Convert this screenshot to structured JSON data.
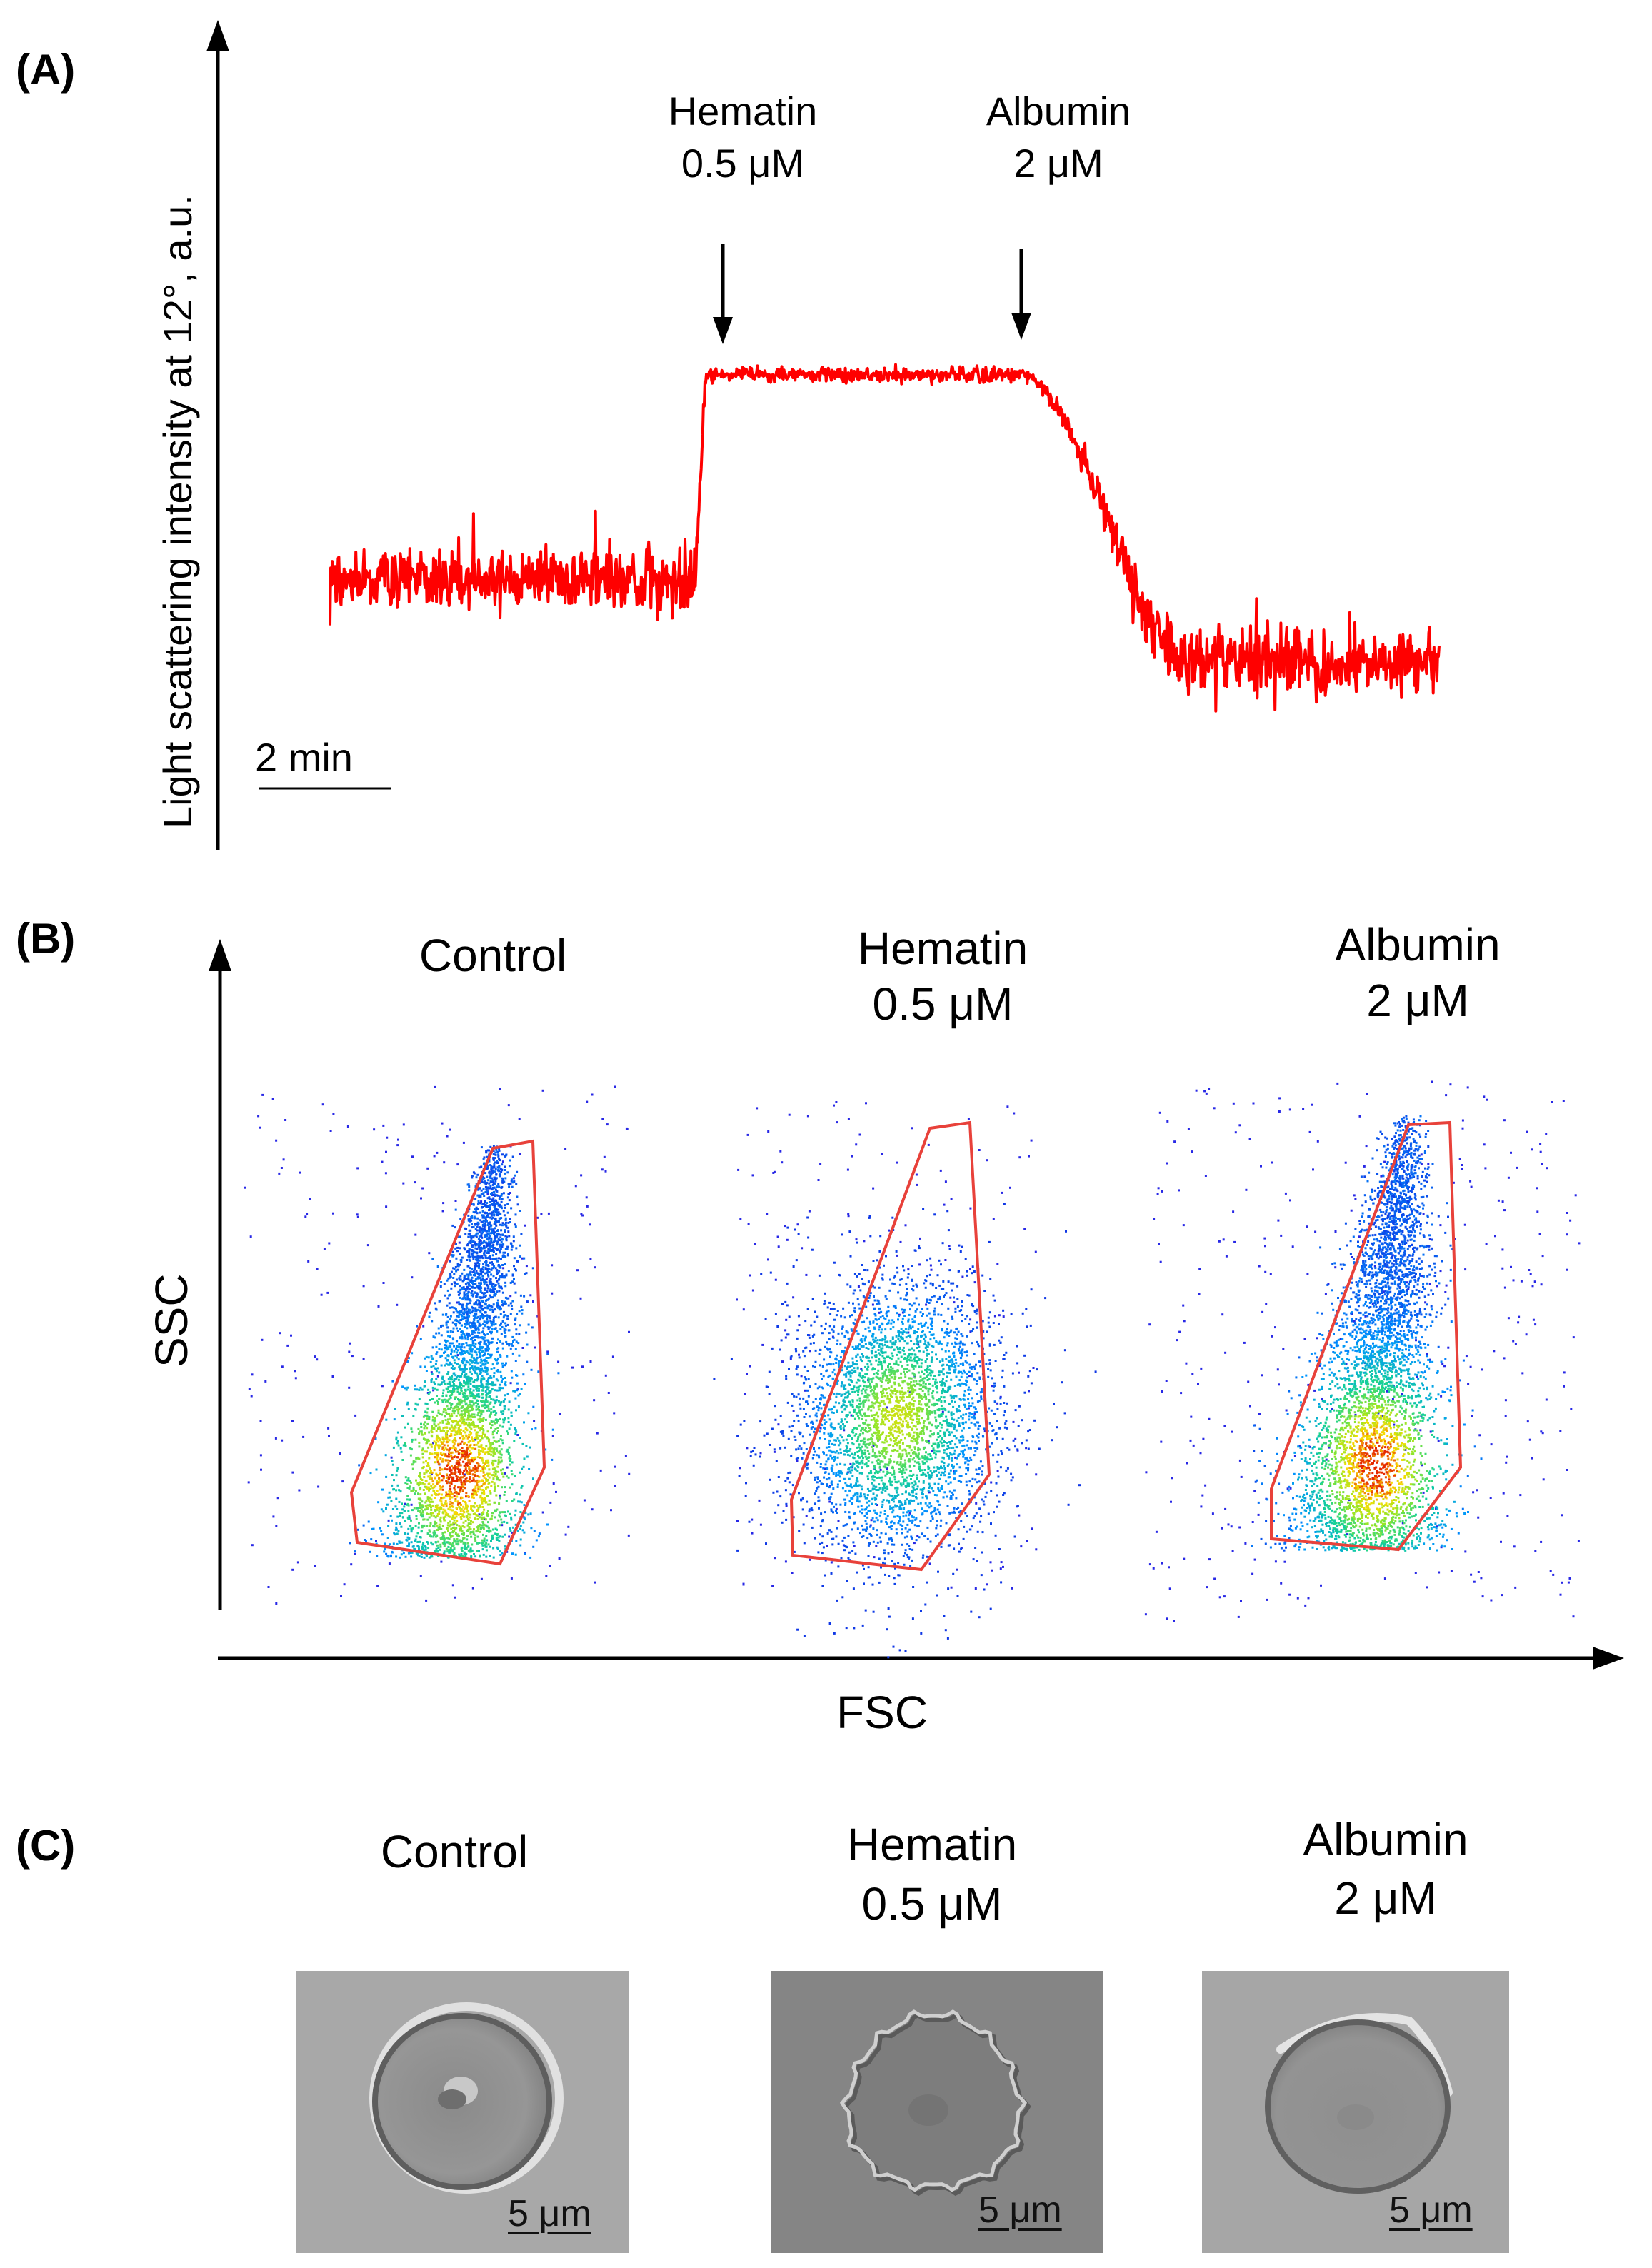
{
  "colors": {
    "trace": "#ff0000",
    "gate": "#e8413a",
    "axis": "#000000",
    "micro_bg": "#a9a9a9",
    "micro_cell": "#8e8e8e",
    "micro_rim": "#d9d9d9"
  },
  "panel_a": {
    "label": "(A)",
    "y_axis_label": "Light scattering intensity at 12°, a.u.",
    "scale_bar_label": "2 min",
    "annotations": [
      {
        "name": "Hematin",
        "dose": "0.5 μM"
      },
      {
        "name": "Albumin",
        "dose": "2 μM"
      }
    ]
  },
  "panel_b": {
    "label": "(B)",
    "y_axis_label": "SSC",
    "x_axis_label": "FSC",
    "plots": [
      {
        "title_line1": "Control",
        "title_line2": ""
      },
      {
        "title_line1": "Hematin",
        "title_line2": "0.5 μM"
      },
      {
        "title_line1": "Albumin",
        "title_line2": "2 μM"
      }
    ]
  },
  "panel_c": {
    "label": "(C)",
    "images": [
      {
        "title_line1": "Control",
        "title_line2": "",
        "scale_label": "5 μm",
        "shape": "smooth-discocyte"
      },
      {
        "title_line1": "Hematin",
        "title_line2": "0.5 μM",
        "scale_label": "5 μm",
        "shape": "echinocyte"
      },
      {
        "title_line1": "Albumin",
        "title_line2": "2 μM",
        "scale_label": "5 μm",
        "shape": "discocyte"
      }
    ]
  },
  "chart_data": {
    "type": "line",
    "title": "",
    "xlabel": "time (scale bar: 2 min)",
    "ylabel": "Light scattering intensity at 12°, a.u.",
    "x_unit": "min",
    "y_unit": "a.u. (relative, 0 = baseline, 1 = hematin plateau)",
    "series": [
      {
        "name": "baseline (control)",
        "t_start": 0.0,
        "t_end": 5.6,
        "level": 0.0
      },
      {
        "name": "after Hematin 0.5 μM",
        "t_start": 5.6,
        "t_end": 10.6,
        "level": 1.0
      },
      {
        "name": "after Albumin 2 μM",
        "t_start": 10.6,
        "t_end": 17.0,
        "level": -0.4
      }
    ],
    "events": [
      {
        "label": "Hematin 0.5 μM",
        "t": 5.9
      },
      {
        "label": "Albumin 2 μM",
        "t": 10.7
      }
    ]
  }
}
